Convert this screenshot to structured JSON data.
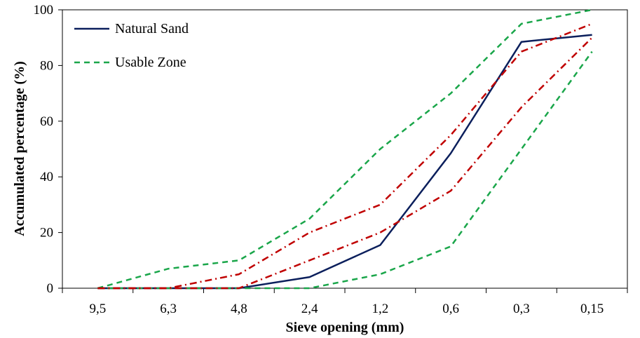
{
  "chart_data": {
    "type": "line",
    "title": "",
    "xlabel": "Sieve opening (mm)",
    "ylabel": "Accumulated percentage (%)",
    "categories": [
      "9,5",
      "6,3",
      "4,8",
      "2,4",
      "1,2",
      "0,6",
      "0,3",
      "0,15"
    ],
    "ylim": [
      0,
      100
    ],
    "yticks": [
      0,
      20,
      40,
      60,
      80,
      100
    ],
    "grid": false,
    "legend": "top-left",
    "series": [
      {
        "name": "Natural Sand",
        "style": "solid",
        "color": "#0b1f5c",
        "values": [
          0,
          0,
          0,
          4,
          15.5,
          48.5,
          88.5,
          91
        ]
      },
      {
        "name": "Usable Zone",
        "style": "dashed",
        "color": "#1aa64a",
        "values": [
          0,
          7,
          10,
          25,
          50,
          70,
          95,
          100
        ]
      },
      {
        "name": "",
        "style": "dashed",
        "color": "#1aa64a",
        "values": [
          0,
          0,
          0,
          0,
          5,
          15,
          50,
          85
        ]
      },
      {
        "name": "",
        "style": "dashdot",
        "color": "#c00000",
        "values": [
          0,
          0,
          5,
          20,
          30,
          55,
          85,
          95
        ]
      },
      {
        "name": "",
        "style": "dashdot",
        "color": "#c00000",
        "values": [
          0,
          0,
          0,
          10,
          20,
          35,
          65,
          90
        ]
      }
    ]
  }
}
